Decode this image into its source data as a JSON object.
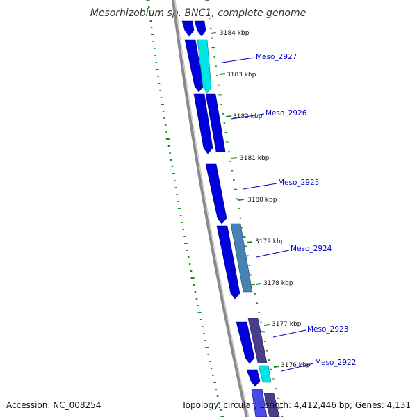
{
  "title": "Mesorhizobium sp. BNC1, complete genome",
  "footer": {
    "accession": "Accession: NC_008254",
    "topology": "Topology: circular; Length: 4,412,446 bp; Genes: 4,131"
  },
  "colors": {
    "background": "#ffffff",
    "backbone": "#808080",
    "tick_green": "#1a8c1a",
    "gene_blue": "#0000dd",
    "gene_cyan": "#00e5e5",
    "gene_steel": "#4682b4",
    "gene_slate": "#483d8b",
    "label_blue": "#0000c8"
  },
  "scale_labels": [
    "3184 kbp",
    "3183 kbp",
    "3182 kbp",
    "3181 kbp",
    "3180 kbp",
    "3179 kbp",
    "3178 kbp",
    "3177 kbp",
    "3176 kbp"
  ],
  "gene_labels": [
    "Meso_2927",
    "Meso_2926",
    "Meso_2925",
    "Meso_2924",
    "Meso_2923",
    "Meso_2922"
  ]
}
